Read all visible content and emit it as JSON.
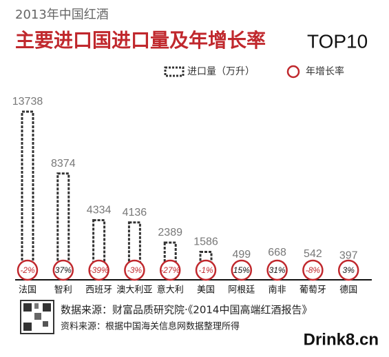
{
  "header": {
    "kicker": "2013年中国红酒",
    "title": "主要进口国进口量及年增长率",
    "title_suffix": "TOP10"
  },
  "chart_data": {
    "type": "bar",
    "legend": "top-right",
    "categories": [
      "法国",
      "智利",
      "西班牙",
      "澳大利亚",
      "意大利",
      "美国",
      "阿根廷",
      "南非",
      "葡萄牙",
      "德国"
    ],
    "series": [
      {
        "name": "进口量（万升）",
        "color": "#333333",
        "values": [
          13738,
          8374,
          4334,
          4136,
          2389,
          1586,
          499,
          668,
          542,
          397
        ]
      },
      {
        "name": "年增长率",
        "color": "#c0282d",
        "values": [
          -2,
          37,
          -39,
          -3,
          -27,
          -1,
          15,
          31,
          -8,
          3
        ],
        "value_labels": [
          "-2%",
          "37%",
          "-39%",
          "-3%",
          "-27%",
          "-1%",
          "15%",
          "31%",
          "-8%",
          "3%"
        ]
      }
    ]
  },
  "footer": {
    "source": "数据来源：财富品质研究院·《2014中国高端红酒报告》",
    "note": "资料来源：根据中国海关信息网数据整理所得",
    "brand": "Drink8.cn"
  }
}
